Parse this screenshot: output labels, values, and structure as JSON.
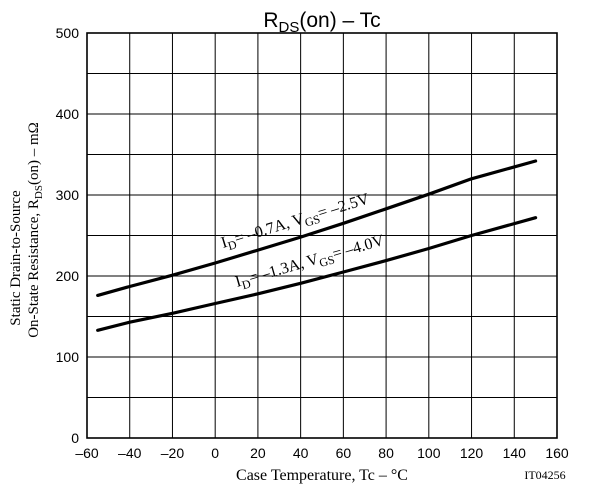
{
  "chart_data": {
    "type": "line",
    "title": {
      "main": "R",
      "sub": "DS",
      "rest": "(on)  –  Tc"
    },
    "xlabel": "Case Temperature, Tc  –  °C",
    "ylabel": {
      "line1": "Static Drain-to-Source",
      "line2_main": "On-State Resistance, R",
      "line2_sub": "DS",
      "line2_rest": "(on)  –  mΩ"
    },
    "xlim": [
      -60,
      160
    ],
    "ylim": [
      0,
      500
    ],
    "x_ticks": [
      "–60",
      "–40",
      "–20",
      "0",
      "20",
      "40",
      "60",
      "80",
      "100",
      "120",
      "140",
      "160"
    ],
    "y_ticks": [
      "0",
      "100",
      "200",
      "300",
      "400",
      "500"
    ],
    "grid": true,
    "figure_id": "IT04256",
    "series": [
      {
        "label": {
          "a": "I",
          "a_sub": "D",
          "b": "= –0.7A, V",
          "b_sub": "GS",
          "c": "= –2.5V"
        },
        "x": [
          -55,
          -40,
          -20,
          0,
          20,
          40,
          60,
          80,
          100,
          120,
          150
        ],
        "y": [
          176,
          187,
          201,
          216,
          232,
          248,
          265,
          283,
          301,
          320,
          342
        ]
      },
      {
        "label": {
          "a": "I",
          "a_sub": "D",
          "b": "= –1.3A, V",
          "b_sub": "GS",
          "c": "= –4.0V"
        },
        "x": [
          -55,
          -40,
          -20,
          0,
          20,
          40,
          60,
          80,
          100,
          120,
          150
        ],
        "y": [
          133,
          143,
          154,
          166,
          178,
          191,
          205,
          219,
          234,
          250,
          272
        ]
      }
    ]
  }
}
